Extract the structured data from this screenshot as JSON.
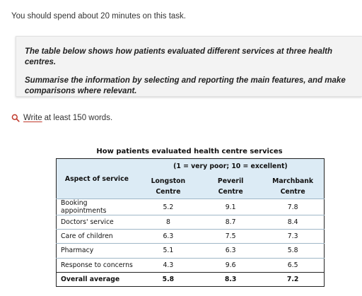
{
  "intro": "You should spend about 20 minutes on this task.",
  "task": {
    "line1": "The table below shows how patients evaluated different services at three health centres.",
    "line2": "Summarise the information by selecting and reporting the main features, and make comparisons where relevant."
  },
  "write": {
    "link": "Write",
    "rest": "at least 150 words.",
    "icon": "search-icon",
    "accent": "#c0392b"
  },
  "chart_data": {
    "type": "table",
    "title": "How patients evaluated health centre services",
    "scale_note": "(1 = very poor; 10 = excellent)",
    "row_header": "Aspect of service",
    "columns": [
      {
        "line1": "Longston",
        "line2": "Centre"
      },
      {
        "line1": "Peveril",
        "line2": "Centre"
      },
      {
        "line1": "Marchbank",
        "line2": "Centre"
      }
    ],
    "rows": [
      {
        "label": "Booking appointments",
        "values": [
          "5.2",
          "9.1",
          "7.8"
        ]
      },
      {
        "label": "Doctors' service",
        "values": [
          "8",
          "8.7",
          "8.4"
        ]
      },
      {
        "label": "Care of children",
        "values": [
          "6.3",
          "7.5",
          "7.3"
        ]
      },
      {
        "label": "Pharmacy",
        "values": [
          "5.1",
          "6.3",
          "5.8"
        ]
      },
      {
        "label": "Response to concerns",
        "values": [
          "4.3",
          "9.6",
          "6.5"
        ]
      }
    ],
    "total": {
      "label": "Overall average",
      "values": [
        "5.8",
        "8.3",
        "7.2"
      ]
    },
    "header_color": "#dcebf5"
  }
}
